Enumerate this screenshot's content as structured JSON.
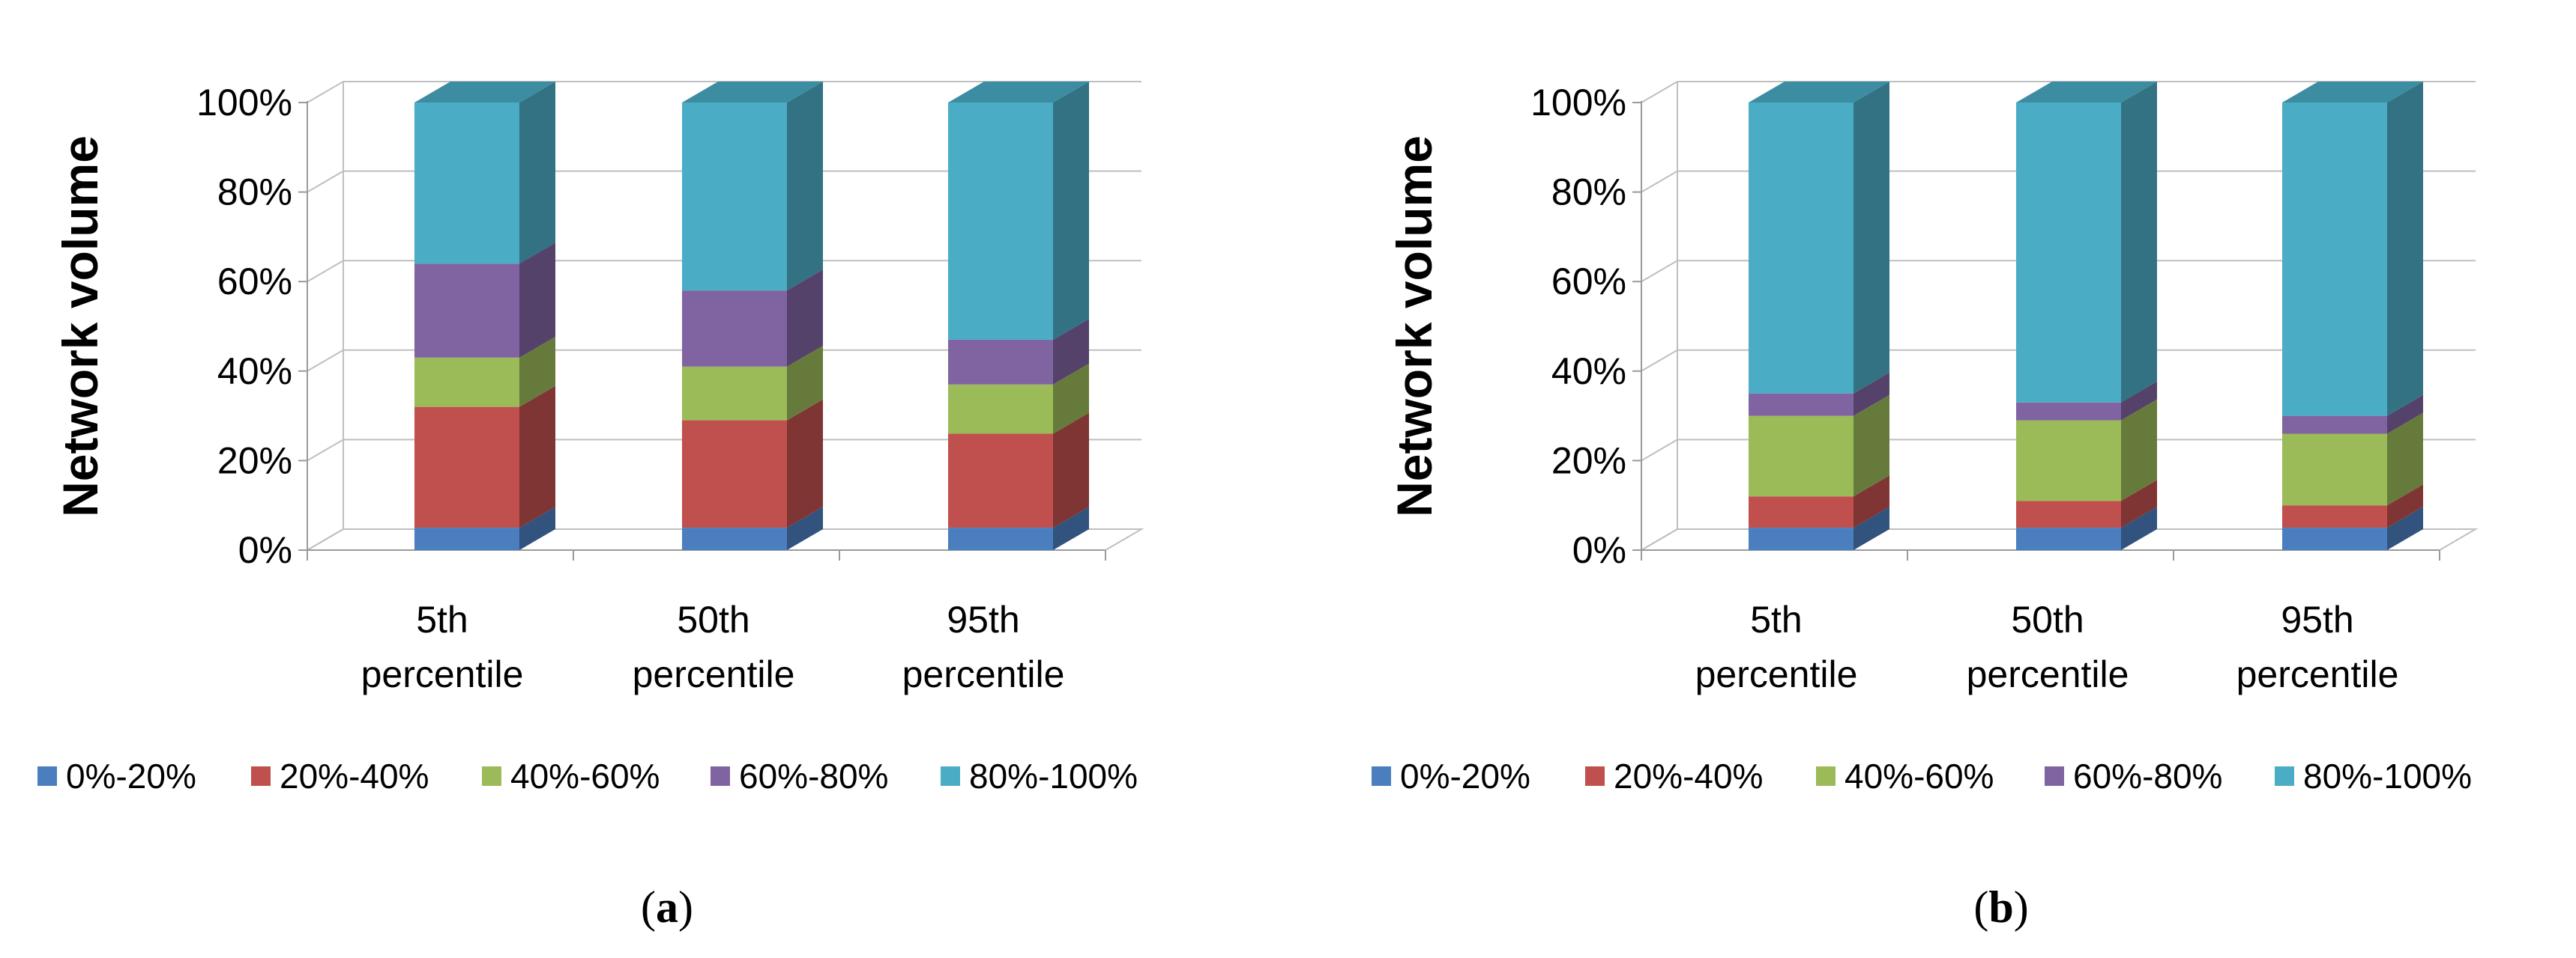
{
  "legend_colors": {
    "0%-20%": "#4a7ebf",
    "20%-40%": "#c0504d",
    "40%-60%": "#9bbb59",
    "60%-80%": "#8064a2",
    "80%-100%": "#4bacc6"
  },
  "chart_data": [
    {
      "type": "bar",
      "stacked": true,
      "panel_label": "a",
      "ylabel": "Network volume",
      "ylim": [
        0,
        100
      ],
      "yticks": [
        "0%",
        "20%",
        "40%",
        "60%",
        "80%",
        "100%"
      ],
      "categories": [
        "5th percentile",
        "50th percentile",
        "95th percentile"
      ],
      "category_lines": [
        [
          "5th",
          "percentile"
        ],
        [
          "50th",
          "percentile"
        ],
        [
          "95th",
          "percentile"
        ]
      ],
      "grid": true,
      "legend_position": "bottom",
      "series": [
        {
          "name": "0%-20%",
          "values": [
            5,
            5,
            5
          ]
        },
        {
          "name": "20%-40%",
          "values": [
            27,
            24,
            21
          ]
        },
        {
          "name": "40%-60%",
          "values": [
            11,
            12,
            11
          ]
        },
        {
          "name": "60%-80%",
          "values": [
            21,
            17,
            10
          ]
        },
        {
          "name": "80%-100%",
          "values": [
            36,
            42,
            53
          ]
        }
      ]
    },
    {
      "type": "bar",
      "stacked": true,
      "panel_label": "b",
      "ylabel": "Network volume",
      "ylim": [
        0,
        100
      ],
      "yticks": [
        "0%",
        "20%",
        "40%",
        "60%",
        "80%",
        "100%"
      ],
      "categories": [
        "5th percentile",
        "50th percentile",
        "95th percentile"
      ],
      "category_lines": [
        [
          "5th",
          "percentile"
        ],
        [
          "50th",
          "percentile"
        ],
        [
          "95th",
          "percentile"
        ]
      ],
      "grid": true,
      "legend_position": "bottom",
      "series": [
        {
          "name": "0%-20%",
          "values": [
            5,
            5,
            5
          ]
        },
        {
          "name": "20%-40%",
          "values": [
            7,
            6,
            5
          ]
        },
        {
          "name": "40%-60%",
          "values": [
            18,
            18,
            16
          ]
        },
        {
          "name": "60%-80%",
          "values": [
            5,
            4,
            4
          ]
        },
        {
          "name": "80%-100%",
          "values": [
            65,
            67,
            70
          ]
        }
      ]
    }
  ]
}
